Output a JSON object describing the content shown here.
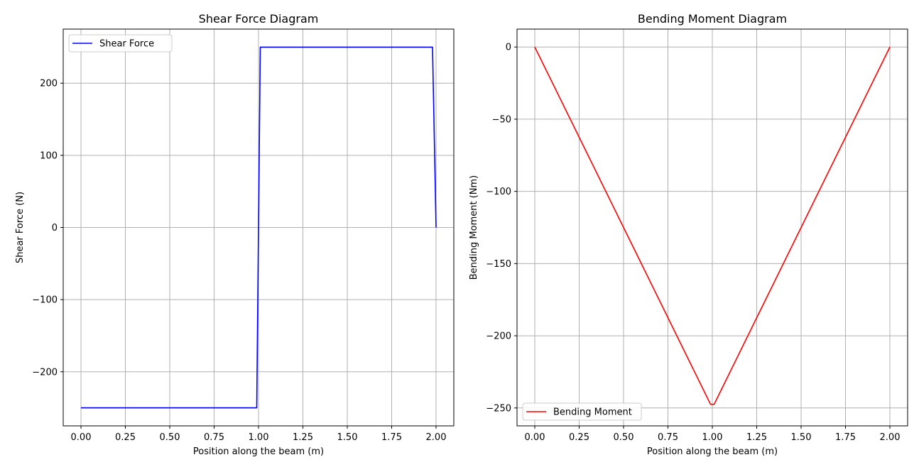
{
  "chart_data": [
    {
      "type": "line",
      "title": "Shear Force Diagram",
      "xlabel": "Position along the beam (m)",
      "ylabel": "Shear Force (N)",
      "xlim": [
        -0.1,
        2.1
      ],
      "ylim": [
        -275,
        275
      ],
      "xticks": [
        0.0,
        0.25,
        0.5,
        0.75,
        1.0,
        1.25,
        1.5,
        1.75,
        2.0
      ],
      "xtick_labels": [
        "0.00",
        "0.25",
        "0.50",
        "0.75",
        "1.00",
        "1.25",
        "1.50",
        "1.75",
        "2.00"
      ],
      "yticks": [
        -200,
        -100,
        0,
        100,
        200
      ],
      "ytick_labels": [
        "−200",
        "−100",
        "0",
        "100",
        "200"
      ],
      "grid": true,
      "legend": "upper-left",
      "series": [
        {
          "name": "Shear Force",
          "color": "#0000ff",
          "x": [
            0.0,
            0.99,
            1.01,
            1.98,
            2.0
          ],
          "y": [
            -250,
            -250,
            250,
            250,
            0
          ]
        }
      ]
    },
    {
      "type": "line",
      "title": "Bending Moment Diagram",
      "xlabel": "Position along the beam (m)",
      "ylabel": "Bending Moment (Nm)",
      "xlim": [
        -0.1,
        2.1
      ],
      "ylim": [
        -262.4,
        12.4
      ],
      "xticks": [
        0.0,
        0.25,
        0.5,
        0.75,
        1.0,
        1.25,
        1.5,
        1.75,
        2.0
      ],
      "xtick_labels": [
        "0.00",
        "0.25",
        "0.50",
        "0.75",
        "1.00",
        "1.25",
        "1.50",
        "1.75",
        "2.00"
      ],
      "yticks": [
        0,
        -50,
        -100,
        -150,
        -200,
        -250
      ],
      "ytick_labels": [
        "0",
        "−50",
        "−100",
        "−150",
        "−200",
        "−250"
      ],
      "grid": true,
      "legend": "lower-left",
      "series": [
        {
          "name": "Bending Moment",
          "color": "#ff0000",
          "x": [
            0.0,
            0.99,
            1.01,
            2.0
          ],
          "y": [
            0,
            -247.5,
            -247.5,
            0
          ]
        }
      ]
    }
  ]
}
